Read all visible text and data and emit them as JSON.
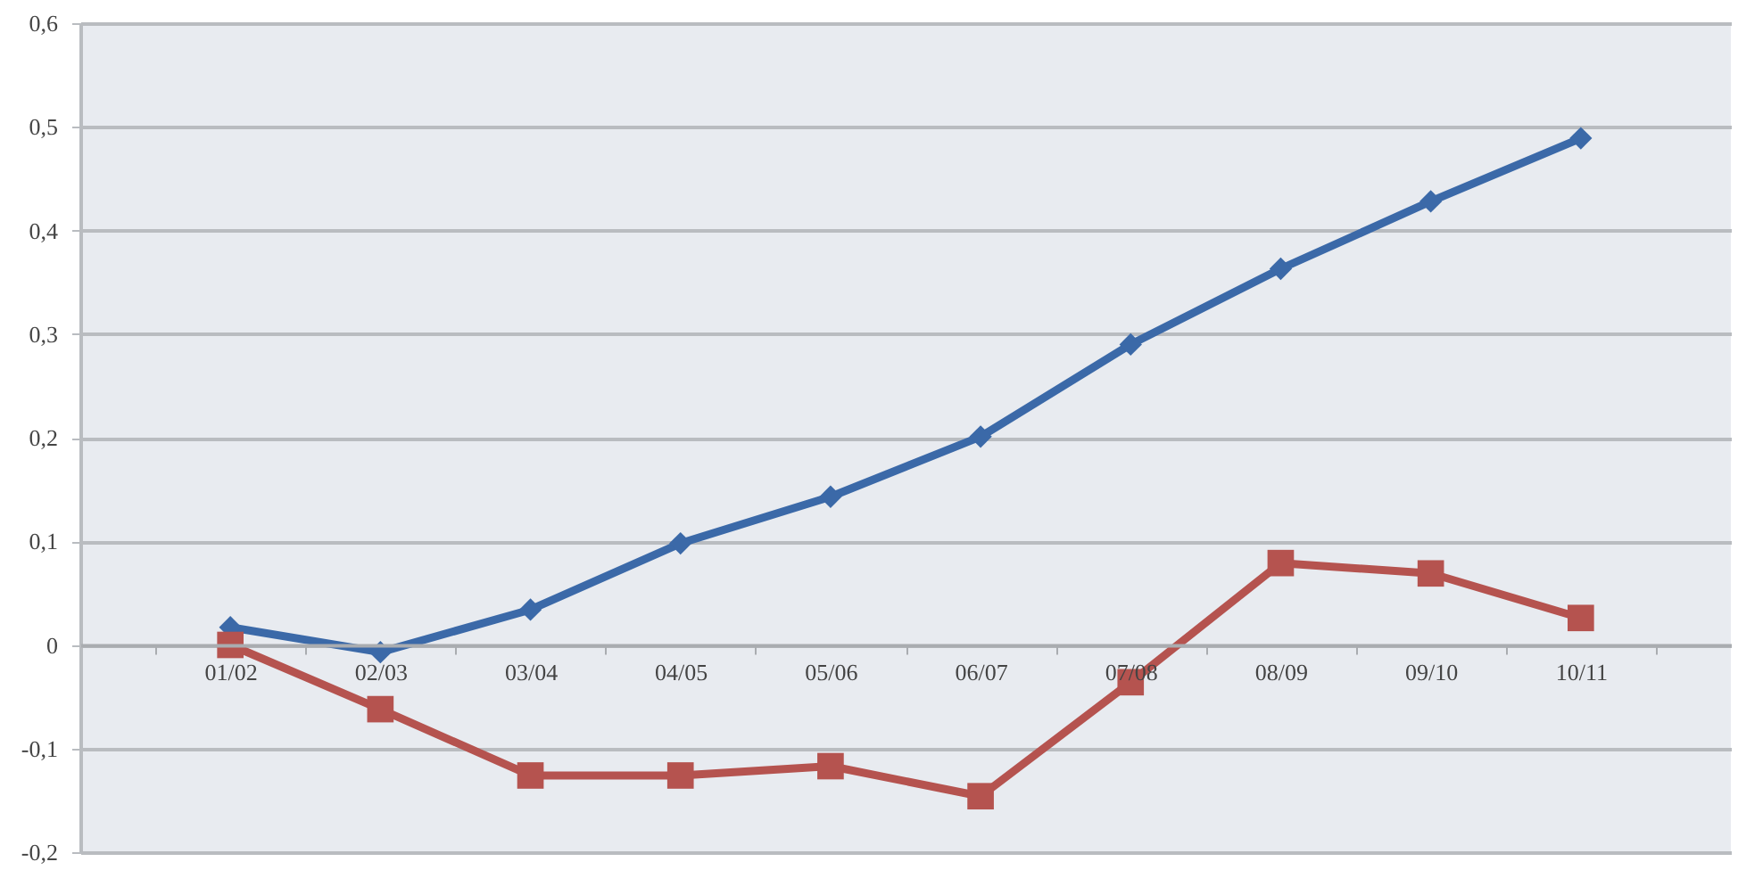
{
  "chart_data": {
    "type": "line",
    "categories": [
      "01/02",
      "02/03",
      "03/04",
      "04/05",
      "05/06",
      "06/07",
      "07/08",
      "08/09",
      "09/10",
      "10/11"
    ],
    "series": [
      {
        "color": "#3b69a8",
        "marker": "diamond",
        "values": [
          0.017,
          -0.007,
          0.034,
          0.098,
          0.143,
          0.201,
          0.29,
          0.363,
          0.428,
          0.489
        ]
      },
      {
        "color": "#b5534f",
        "marker": "square",
        "values": [
          0.0,
          -0.062,
          -0.126,
          -0.126,
          -0.117,
          -0.146,
          -0.036,
          0.079,
          0.069,
          0.026
        ]
      }
    ],
    "ylim": [
      -0.2,
      0.6
    ],
    "yticks": [
      {
        "value": -0.2,
        "label": "-0,2"
      },
      {
        "value": -0.1,
        "label": "-0,1"
      },
      {
        "value": 0,
        "label": "0"
      },
      {
        "value": 0.1,
        "label": "0,1"
      },
      {
        "value": 0.2,
        "label": "0,2"
      },
      {
        "value": 0.3,
        "label": "0,3"
      },
      {
        "value": 0.4,
        "label": "0,4"
      },
      {
        "value": 0.5,
        "label": "0,5"
      },
      {
        "value": 0.6,
        "label": "0,6"
      }
    ],
    "grid": "y",
    "line_style": "solid"
  }
}
